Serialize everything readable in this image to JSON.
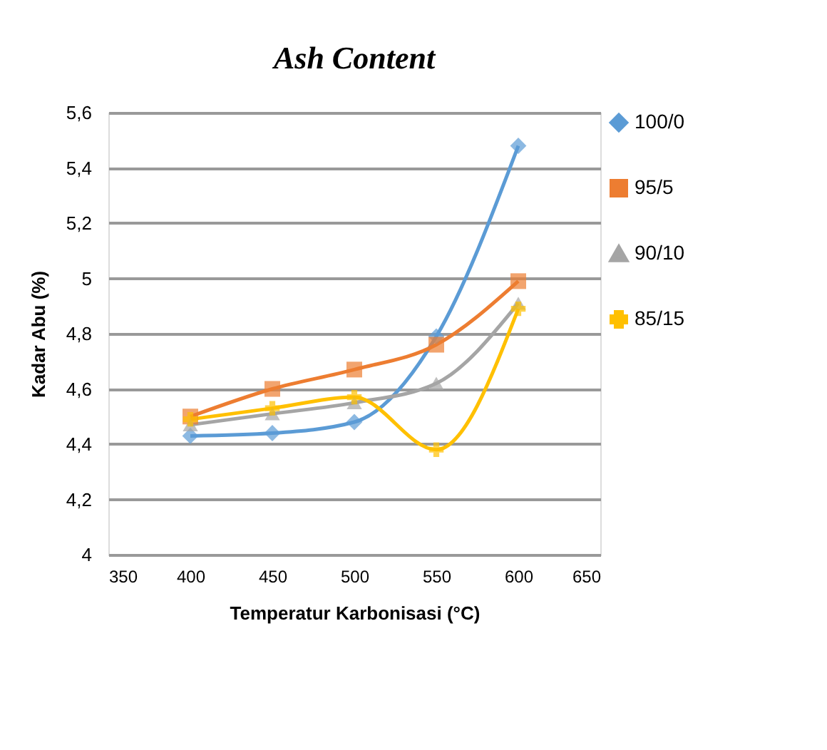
{
  "chart_data": {
    "type": "line",
    "title": "Ash Content",
    "xlabel": "Temperatur Karbonisasi  (°C)",
    "ylabel": "Kadar Abu  (%)",
    "x": [
      400,
      450,
      500,
      550,
      600
    ],
    "series": [
      {
        "name": "100/0",
        "color": "#5b9bd5",
        "marker": "diamond",
        "values": [
          4.43,
          4.44,
          4.48,
          4.79,
          5.48
        ]
      },
      {
        "name": "95/5",
        "color": "#ed7d31",
        "marker": "square",
        "values": [
          4.5,
          4.6,
          4.67,
          4.76,
          4.99
        ]
      },
      {
        "name": "90/10",
        "color": "#a5a5a5",
        "marker": "triangle",
        "values": [
          4.47,
          4.51,
          4.55,
          4.62,
          4.91
        ]
      },
      {
        "name": "85/15",
        "color": "#ffc000",
        "marker": "cross",
        "values": [
          4.49,
          4.53,
          4.57,
          4.38,
          4.89
        ]
      }
    ],
    "xlim": [
      350,
      650
    ],
    "xticks": [
      350,
      400,
      450,
      500,
      550,
      600,
      650
    ],
    "ylim": [
      4,
      5.6
    ],
    "yticks": [
      4,
      {
        "value": 4.2,
        "label": "4,2"
      },
      {
        "value": 4.4,
        "label": "4,4"
      },
      {
        "value": 4.6,
        "label": "4,6"
      },
      {
        "value": 4.8,
        "label": "4,8"
      },
      5,
      {
        "value": 5.2,
        "label": "5,2"
      },
      {
        "value": 5.4,
        "label": "5,4"
      },
      {
        "value": 5.6,
        "label": "5,6"
      }
    ],
    "grid": "y",
    "legend": "right",
    "line_style": "solid"
  }
}
